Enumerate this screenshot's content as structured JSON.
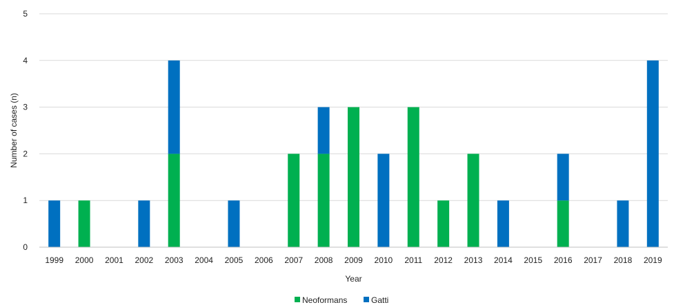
{
  "chart_data": {
    "type": "bar",
    "stacked": true,
    "categories": [
      "1999",
      "2000",
      "2001",
      "2002",
      "2003",
      "2004",
      "2005",
      "2006",
      "2007",
      "2008",
      "2009",
      "2010",
      "2011",
      "2012",
      "2013",
      "2014",
      "2015",
      "2016",
      "2017",
      "2018",
      "2019"
    ],
    "series": [
      {
        "name": "Neoformans",
        "color": "#00b050",
        "values": [
          0,
          1,
          0,
          0,
          2,
          0,
          0,
          0,
          2,
          2,
          3,
          0,
          3,
          1,
          2,
          0,
          0,
          1,
          0,
          0,
          0
        ]
      },
      {
        "name": "Gatti",
        "color": "#0070c0",
        "values": [
          1,
          0,
          0,
          1,
          2,
          0,
          1,
          0,
          0,
          1,
          0,
          2,
          0,
          0,
          0,
          1,
          0,
          1,
          0,
          1,
          4
        ]
      }
    ],
    "xlabel": "Year",
    "ylabel": "Number of cases (n)",
    "ylim": [
      0,
      5
    ],
    "yticks": [
      0,
      1,
      2,
      3,
      4,
      5
    ],
    "grid": true,
    "legend_position": "bottom"
  }
}
